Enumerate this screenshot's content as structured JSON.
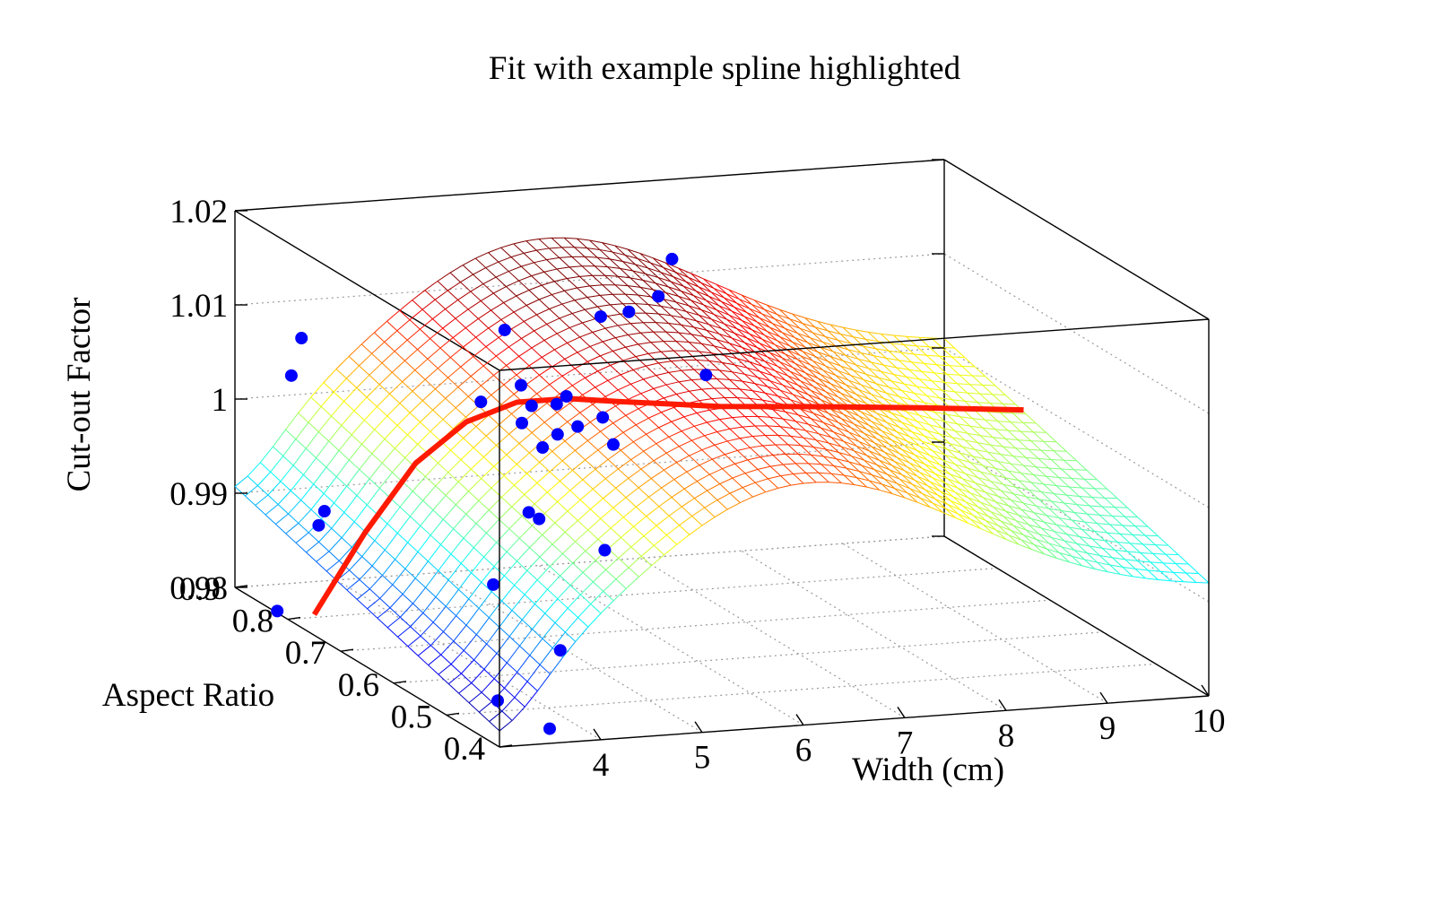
{
  "chart_data": {
    "type": "surface3d",
    "title": "Fit with example spline highlighted",
    "xlabel": "Width (cm)",
    "ylabel": "Aspect Ratio",
    "zlabel": "Cut-out Factor",
    "xlim": [
      3,
      10
    ],
    "ylim": [
      0.4,
      0.9
    ],
    "zlim": [
      0.98,
      1.02
    ],
    "x_ticks": [
      "4",
      "5",
      "6",
      "7",
      "8",
      "9",
      "10"
    ],
    "y_ticks": [
      "0.4",
      "0.5",
      "0.6",
      "0.7",
      "0.8",
      "0.9"
    ],
    "z_ticks": [
      "0.98",
      "0.99",
      "1",
      "1.01",
      "1.02"
    ],
    "grid": true,
    "surface": {
      "colormap": "jet",
      "x_range": [
        3,
        10
      ],
      "y_range": [
        0.4,
        0.9
      ]
    },
    "highlighted_spline": {
      "color": "#ff1a00",
      "aspect_ratio": 0.75,
      "points": [
        {
          "x": 3.0,
          "y": 0.75,
          "z": 0.9822
        },
        {
          "x": 3.5,
          "y": 0.75,
          "z": 0.9905
        },
        {
          "x": 4.0,
          "y": 0.75,
          "z": 0.9975
        },
        {
          "x": 4.5,
          "y": 0.75,
          "z": 1.0015
        },
        {
          "x": 5.0,
          "y": 0.75,
          "z": 1.0032
        },
        {
          "x": 5.5,
          "y": 0.75,
          "z": 1.0032
        },
        {
          "x": 6.0,
          "y": 0.75,
          "z": 1.0025
        },
        {
          "x": 7.0,
          "y": 0.75,
          "z": 1.0012
        },
        {
          "x": 8.0,
          "y": 0.75,
          "z": 1.0004
        },
        {
          "x": 9.0,
          "y": 0.75,
          "z": 0.9995
        },
        {
          "x": 10.0,
          "y": 0.75,
          "z": 0.9985
        }
      ]
    },
    "points_color": "#0000ff",
    "data_points": [
      {
        "x": 4.2,
        "y": 0.62,
        "z": 1.0159
      },
      {
        "x": 5.2,
        "y": 0.63,
        "z": 1.0162
      },
      {
        "x": 3.6,
        "y": 0.55,
        "z": 1.0111
      },
      {
        "x": 4.1,
        "y": 0.57,
        "z": 1.0118
      },
      {
        "x": 3.9,
        "y": 0.53,
        "z": 1.0093
      },
      {
        "x": 4.1,
        "y": 0.55,
        "z": 1.0103
      },
      {
        "x": 4.4,
        "y": 0.56,
        "z": 1.0099
      },
      {
        "x": 4.6,
        "y": 0.58,
        "z": 1.0099
      },
      {
        "x": 4.2,
        "y": 0.52,
        "z": 1.0082
      },
      {
        "x": 4.0,
        "y": 0.51,
        "z": 1.0073
      },
      {
        "x": 4.45,
        "y": 0.53,
        "z": 1.0085
      },
      {
        "x": 4.75,
        "y": 0.54,
        "z": 1.0089
      },
      {
        "x": 4.75,
        "y": 0.52,
        "z": 1.0067
      },
      {
        "x": 6.0,
        "y": 0.73,
        "z": 1.0127
      },
      {
        "x": 6.5,
        "y": 0.77,
        "z": 1.0126
      },
      {
        "x": 7.0,
        "y": 0.84,
        "z": 1.0138
      },
      {
        "x": 6.5,
        "y": 0.68,
        "z": 1.0073
      },
      {
        "x": 3.55,
        "y": 0.45,
        "z": 1.0028
      },
      {
        "x": 3.6,
        "y": 0.44,
        "z": 1.0024
      },
      {
        "x": 4.3,
        "y": 0.45,
        "z": 0.9982
      },
      {
        "x": 3.2,
        "y": 0.45,
        "z": 0.9954
      },
      {
        "x": 3.6,
        "y": 0.4,
        "z": 0.9898
      },
      {
        "x": 3.5,
        "y": 0.87,
        "z": 1.0071
      },
      {
        "x": 3.4,
        "y": 0.87,
        "z": 1.0032
      },
      {
        "x": 3.1,
        "y": 0.75,
        "z": 0.9931
      },
      {
        "x": 3.2,
        "y": 0.78,
        "z": 0.9905
      },
      {
        "x": 3.4,
        "y": 0.48,
        "z": 0.9819
      },
      {
        "x": 3.6,
        "y": 0.42,
        "z": 0.9808
      },
      {
        "x": 3.0,
        "y": 0.82,
        "z": 0.9802
      }
    ]
  }
}
